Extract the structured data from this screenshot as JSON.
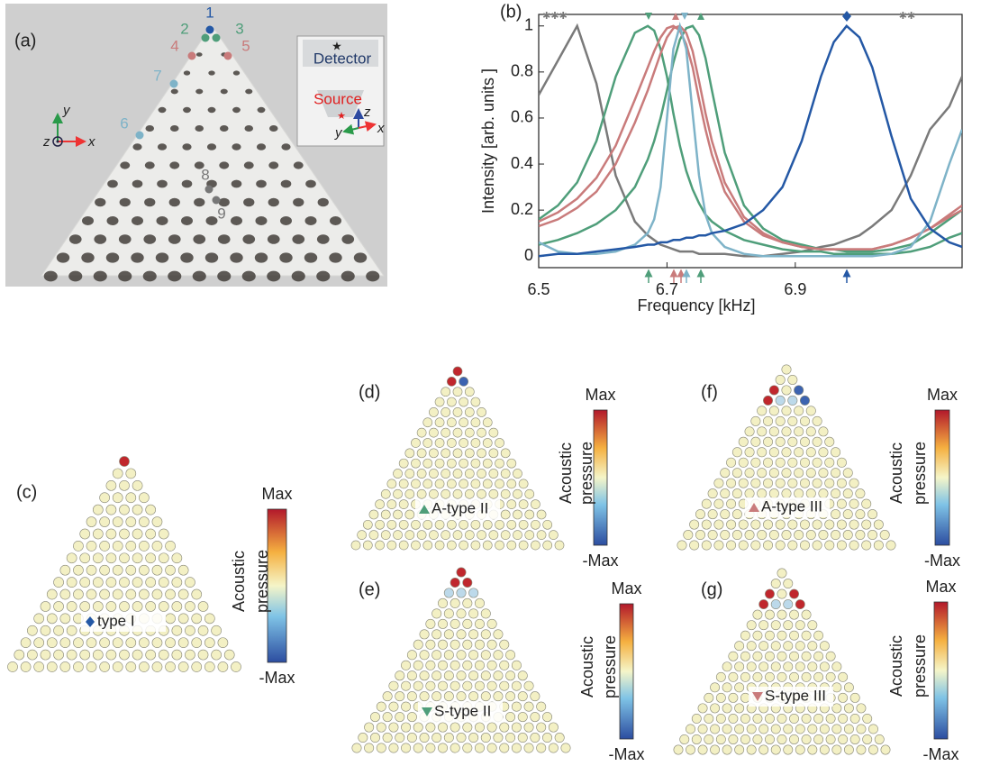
{
  "panel_labels": [
    "(a)",
    "(b)",
    "(c)",
    "(d)",
    "(e)",
    "(f)",
    "(g)"
  ],
  "photo": {
    "site_labels": [
      "1",
      "2",
      "3",
      "4",
      "5",
      "6",
      "7",
      "8",
      "9"
    ],
    "axes": [
      "x",
      "y",
      "z"
    ],
    "inset": {
      "detector": "Detector",
      "source": "Source",
      "axes": [
        "x",
        "y",
        "z"
      ]
    }
  },
  "chart_data": {
    "type": "line",
    "xlabel": "Frequency [kHz]",
    "ylabel": "Intensity [arb. units ]",
    "xlim": [
      6.5,
      7.16
    ],
    "ylim": [
      -0.05,
      1.05
    ],
    "xticks": [
      6.5,
      6.7,
      6.9
    ],
    "yticks": [
      0,
      0.2,
      0.4,
      0.6,
      0.8,
      1
    ],
    "x": [
      6.5,
      6.53,
      6.56,
      6.59,
      6.62,
      6.65,
      6.67,
      6.68,
      6.69,
      6.7,
      6.71,
      6.72,
      6.73,
      6.74,
      6.75,
      6.76,
      6.77,
      6.79,
      6.82,
      6.85,
      6.88,
      6.91,
      6.94,
      6.96,
      6.98,
      7.0,
      7.02,
      7.05,
      7.08,
      7.11,
      7.14,
      7.16
    ],
    "series": [
      {
        "color": "#7a7a7a",
        "values": [
          0.7,
          0.85,
          1.0,
          0.75,
          0.35,
          0.15,
          0.09,
          0.07,
          0.05,
          0.04,
          0.03,
          0.02,
          0.02,
          0.02,
          0.01,
          0.01,
          0.01,
          0.01,
          0,
          0,
          0.01,
          0.02,
          0.04,
          0.05,
          0.07,
          0.09,
          0.13,
          0.2,
          0.35,
          0.55,
          0.65,
          0.78
        ]
      },
      {
        "color": "#4f9e7a",
        "values": [
          0.16,
          0.22,
          0.32,
          0.5,
          0.78,
          0.97,
          1.0,
          0.98,
          0.9,
          0.78,
          0.62,
          0.48,
          0.37,
          0.29,
          0.23,
          0.18,
          0.15,
          0.11,
          0.07,
          0.05,
          0.03,
          0.02,
          0.02,
          0.01,
          0.01,
          0.01,
          0.01,
          0.01,
          0.02,
          0.04,
          0.08,
          0.1
        ]
      },
      {
        "color": "#4f9e7a",
        "values": [
          0.05,
          0.07,
          0.1,
          0.14,
          0.2,
          0.3,
          0.42,
          0.5,
          0.6,
          0.72,
          0.84,
          0.94,
          0.99,
          1.0,
          0.96,
          0.86,
          0.72,
          0.45,
          0.22,
          0.12,
          0.07,
          0.05,
          0.03,
          0.03,
          0.02,
          0.02,
          0.02,
          0.03,
          0.05,
          0.1,
          0.16,
          0.2
        ]
      },
      {
        "color": "#c97b7b",
        "values": [
          0.15,
          0.19,
          0.25,
          0.34,
          0.48,
          0.68,
          0.82,
          0.89,
          0.95,
          0.99,
          1.0,
          0.98,
          0.92,
          0.82,
          0.68,
          0.55,
          0.44,
          0.28,
          0.15,
          0.09,
          0.06,
          0.04,
          0.03,
          0.03,
          0.03,
          0.03,
          0.03,
          0.05,
          0.08,
          0.12,
          0.18,
          0.22
        ]
      },
      {
        "color": "#c97b7b",
        "values": [
          0.13,
          0.16,
          0.21,
          0.28,
          0.4,
          0.58,
          0.72,
          0.8,
          0.88,
          0.95,
          0.99,
          1.0,
          0.97,
          0.89,
          0.76,
          0.62,
          0.5,
          0.32,
          0.17,
          0.1,
          0.06,
          0.04,
          0.03,
          0.03,
          0.03,
          0.03,
          0.03,
          0.05,
          0.08,
          0.12,
          0.17,
          0.2
        ]
      },
      {
        "color": "#7eb3c8",
        "values": [
          0.06,
          0.02,
          0.01,
          0.01,
          0.02,
          0.05,
          0.1,
          0.16,
          0.3,
          0.6,
          0.9,
          1.0,
          0.9,
          0.62,
          0.35,
          0.18,
          0.1,
          0.04,
          0.01,
          0,
          0,
          0,
          0,
          0,
          0,
          0,
          0,
          0.01,
          0.04,
          0.15,
          0.4,
          0.55
        ]
      },
      {
        "color": "#2458a5",
        "values": [
          0,
          0.01,
          0.01,
          0.02,
          0.03,
          0.04,
          0.05,
          0.05,
          0.06,
          0.06,
          0.07,
          0.07,
          0.08,
          0.08,
          0.09,
          0.09,
          0.1,
          0.11,
          0.14,
          0.2,
          0.3,
          0.5,
          0.78,
          0.93,
          1.0,
          0.95,
          0.82,
          0.52,
          0.25,
          0.12,
          0.06,
          0.04
        ]
      }
    ]
  },
  "mode_panels": [
    {
      "label": "type I",
      "colorbar_max": "Max",
      "colorbar_min": "-Max",
      "colorbar_title": [
        "Acoustic",
        "pressure"
      ]
    },
    {
      "label": "A-type II",
      "colorbar_max": "Max",
      "colorbar_min": "-Max",
      "colorbar_title": [
        "Acoustic",
        "pressure"
      ]
    },
    {
      "label": "S-type II",
      "colorbar_max": "Max",
      "colorbar_min": "-Max",
      "colorbar_title": [
        "Acoustic",
        "pressure"
      ]
    },
    {
      "label": "A-type III",
      "colorbar_max": "Max",
      "colorbar_min": "-Max",
      "colorbar_title": [
        "Acoustic",
        "pressure"
      ]
    },
    {
      "label": "S-type III",
      "colorbar_max": "Max",
      "colorbar_min": "-Max",
      "colorbar_title": [
        "Acoustic",
        "pressure"
      ]
    }
  ]
}
